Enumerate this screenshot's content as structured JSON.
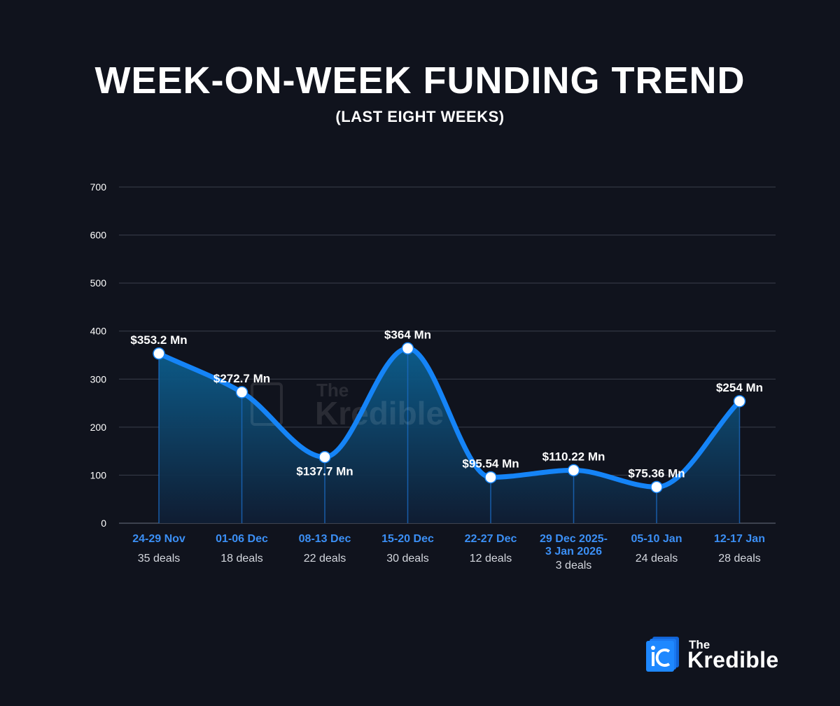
{
  "header": {
    "title": "WEEK-ON-WEEK FUNDING TREND",
    "subtitle": "(LAST EIGHT WEEKS)"
  },
  "chart_data": {
    "type": "area",
    "title": "WEEK-ON-WEEK FUNDING TREND",
    "subtitle": "(LAST EIGHT WEEKS)",
    "xlabel": "",
    "ylabel": "",
    "ylim": [
      0,
      700
    ],
    "yticks": [
      0,
      100,
      200,
      300,
      400,
      500,
      600,
      700
    ],
    "grid": true,
    "categories": [
      [
        "24-29 Nov"
      ],
      [
        "01-06 Dec"
      ],
      [
        "08-13 Dec"
      ],
      [
        "15-20 Dec"
      ],
      [
        "22-27 Dec"
      ],
      [
        "29 Dec 2025-",
        "3 Jan 2026"
      ],
      [
        "05-10 Jan"
      ],
      [
        "12-17 Jan"
      ]
    ],
    "deals": [
      "35 deals",
      "18 deals",
      "22 deals",
      "30 deals",
      "12 deals",
      "3 deals",
      "24 deals",
      "28 deals"
    ],
    "values": [
      353.2,
      272.7,
      137.7,
      364,
      95.54,
      110.22,
      75.36,
      254
    ],
    "value_labels": [
      "$353.2 Mn",
      "$272.7 Mn",
      "$137.7 Mn",
      "$364 Mn",
      "$95.54 Mn",
      "$110.22 Mn",
      "$75.36 Mn",
      "$254 Mn"
    ],
    "label_position": [
      "above",
      "above",
      "below",
      "above",
      "above",
      "above",
      "above",
      "above"
    ],
    "colors": {
      "line": "#1584f7",
      "point": "#ffffff",
      "category": "#3b8ff5",
      "deals": "#d4d7de",
      "grid": "#3a3f4c",
      "tick": "#ffffff"
    }
  },
  "watermark": {
    "the": "The",
    "name": "Kredible"
  },
  "logo": {
    "the": "The",
    "name": "Kredible"
  }
}
